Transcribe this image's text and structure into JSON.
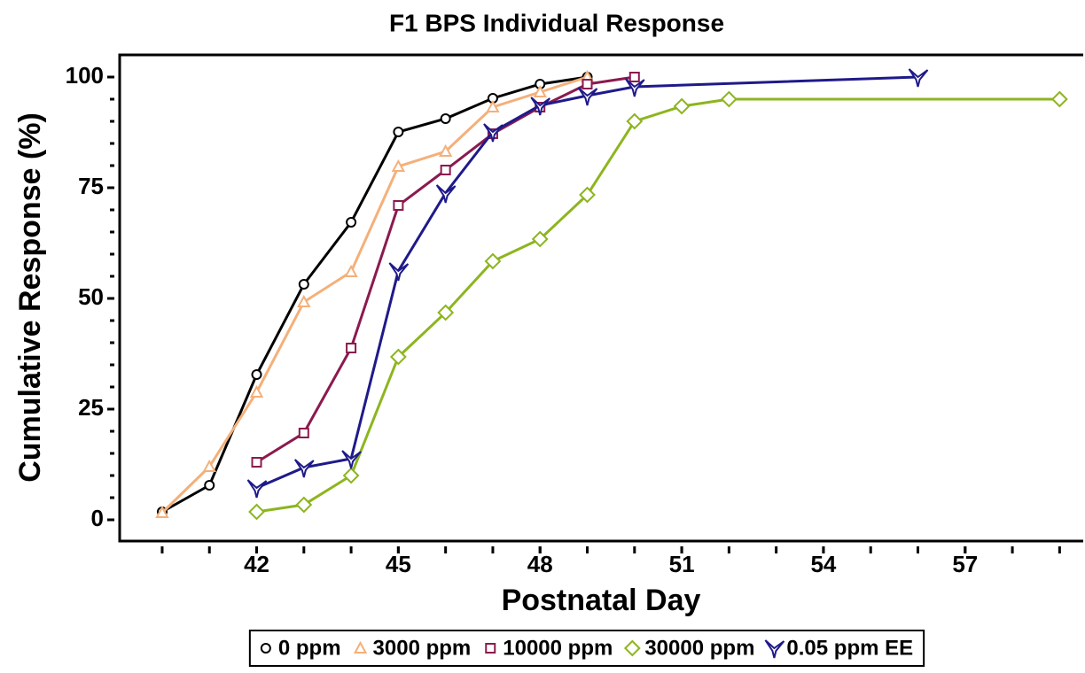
{
  "chart_data": {
    "type": "line",
    "title": "F1 BPS Individual Response",
    "x_label": "Postnatal Day",
    "y_label": "Cumulative Response (%)",
    "xlim": [
      39.1,
      59.5
    ],
    "ylim": [
      -4.8,
      105
    ],
    "xticks": [
      42,
      45,
      48,
      51,
      54,
      57
    ],
    "xminor": [
      40,
      41,
      42,
      43,
      44,
      45,
      46,
      47,
      48,
      49,
      50,
      51,
      52,
      53,
      54,
      55,
      56,
      57,
      58,
      59
    ],
    "yticks": [
      0,
      25,
      50,
      75,
      100
    ],
    "yminor": [
      0,
      5,
      10,
      15,
      20,
      25,
      30,
      35,
      40,
      45,
      50,
      55,
      60,
      65,
      70,
      75,
      80,
      85,
      90,
      95,
      100
    ],
    "legend": "bottom",
    "series": [
      {
        "name": "0 ppm",
        "color": "#000000",
        "marker": "circle",
        "x": [
          40,
          41,
          42,
          43,
          44,
          45,
          46,
          47,
          48,
          49
        ],
        "values": [
          1.8,
          7.8,
          32.8,
          53.2,
          67.2,
          87.6,
          90.6,
          95.2,
          98.4,
          100
        ]
      },
      {
        "name": "3000 ppm",
        "color": "#f4b07a",
        "marker": "triangle",
        "x": [
          40,
          41,
          42,
          43,
          44,
          45,
          46,
          47,
          48,
          49
        ],
        "values": [
          1.6,
          12,
          28.8,
          49.2,
          56,
          79.8,
          83.2,
          93.2,
          96.6,
          100
        ]
      },
      {
        "name": "10000 ppm",
        "color": "#8b1a4f",
        "marker": "square",
        "x": [
          42,
          43,
          44,
          45,
          46,
          47,
          48,
          49,
          50
        ],
        "values": [
          13,
          19.6,
          38.8,
          71,
          79,
          87.2,
          93.2,
          98.4,
          100
        ]
      },
      {
        "name": "30000 ppm",
        "color": "#8db51f",
        "marker": "diamond",
        "x": [
          42,
          43,
          44,
          45,
          46,
          47,
          48,
          49,
          50,
          51,
          52,
          59
        ],
        "values": [
          1.8,
          3.4,
          10,
          36.8,
          46.8,
          58.4,
          63.4,
          73.4,
          90,
          93.4,
          95,
          95
        ]
      },
      {
        "name": "0.05 ppm EE",
        "color": "#1f1a8a",
        "marker": "arrow",
        "x": [
          42,
          43,
          44,
          45,
          46,
          47,
          48,
          49,
          50,
          56
        ],
        "values": [
          7.2,
          11.8,
          13.8,
          56.2,
          73.8,
          87.6,
          93.6,
          95.8,
          97.8,
          100
        ]
      }
    ]
  }
}
